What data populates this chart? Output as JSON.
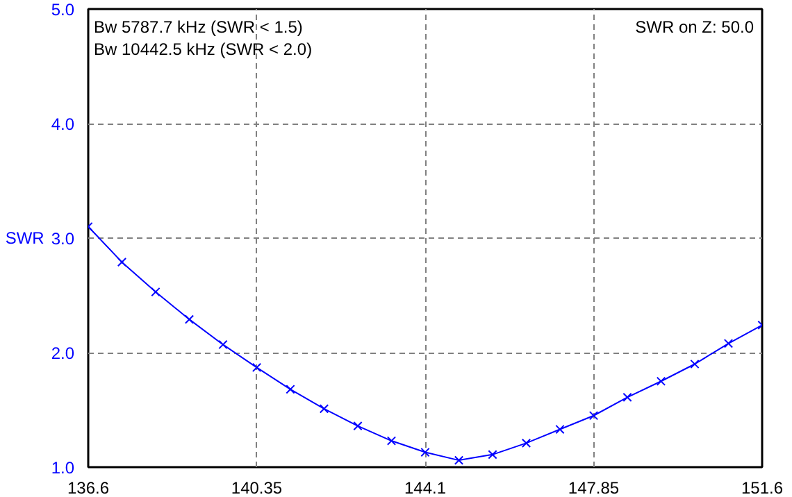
{
  "chart_data": {
    "type": "line",
    "ylabel": "SWR",
    "annotations": [
      "Bw 5787.7 kHz (SWR < 1.5)",
      "Bw 10442.5 kHz (SWR < 2.0)",
      "SWR on Z: 50.0"
    ],
    "x": [
      136.6,
      137.35,
      138.1,
      138.85,
      139.6,
      140.35,
      141.1,
      141.85,
      142.6,
      143.35,
      144.1,
      144.85,
      145.6,
      146.35,
      147.1,
      147.85,
      148.6,
      149.35,
      150.1,
      150.85,
      151.6
    ],
    "series": [
      {
        "color": "#0000ff",
        "values": [
          3.1,
          2.79,
          2.53,
          2.29,
          2.07,
          1.87,
          1.68,
          1.51,
          1.36,
          1.23,
          1.13,
          1.06,
          1.11,
          1.21,
          1.33,
          1.45,
          1.61,
          1.75,
          1.9,
          2.08,
          2.24
        ]
      }
    ],
    "xlim": [
      136.6,
      151.6
    ],
    "xticks": [
      136.6,
      140.35,
      144.1,
      147.85,
      151.6
    ],
    "ylim": [
      1.0,
      5.0
    ],
    "yticks": [
      {
        "value": 1,
        "label": "1.0"
      },
      {
        "value": 2,
        "label": "2.0"
      },
      {
        "value": 3,
        "label": "3.0"
      },
      {
        "value": 4,
        "label": "4.0"
      },
      {
        "value": 5,
        "label": "5.0"
      }
    ],
    "grid": true,
    "marker": "cross",
    "line_style": "solid"
  }
}
